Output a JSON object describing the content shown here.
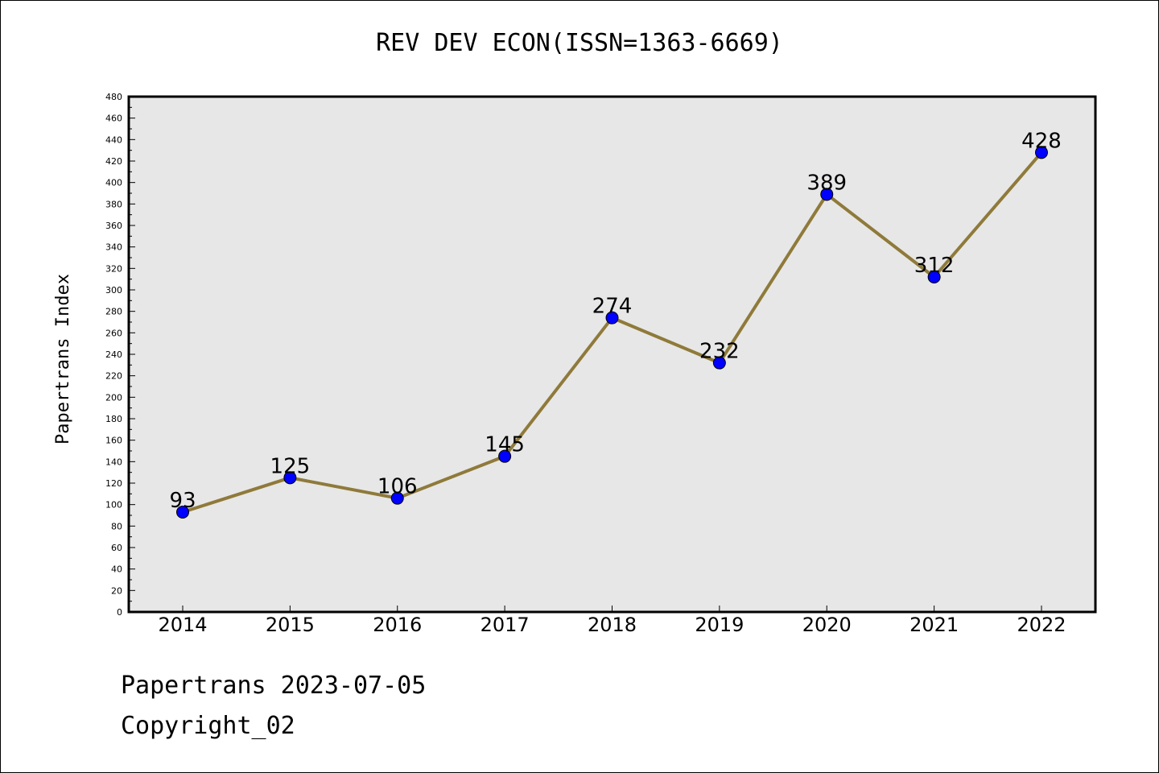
{
  "chart_data": {
    "type": "line",
    "title": "REV DEV ECON(ISSN=1363-6669)",
    "ylabel": "Papertrans Index",
    "xlabel": "",
    "categories": [
      "2014",
      "2015",
      "2016",
      "2017",
      "2018",
      "2019",
      "2020",
      "2021",
      "2022"
    ],
    "series": [
      {
        "values": [
          93,
          125,
          106,
          145,
          274,
          232,
          389,
          312,
          428
        ]
      }
    ],
    "ylim": [
      0,
      480
    ],
    "yticks": [
      0,
      20,
      40,
      60,
      80,
      100,
      120,
      140,
      160,
      180,
      200,
      220,
      240,
      260,
      280,
      300,
      320,
      340,
      360,
      380,
      400,
      420,
      440,
      460,
      480
    ],
    "grid": false,
    "colors": {
      "line": "#8f7a3a",
      "marker": "#0000ff",
      "plot_background": "#e7e7e7"
    }
  },
  "footer": {
    "line1": "Papertrans 2023-07-05",
    "line2": "Copyright_02"
  }
}
